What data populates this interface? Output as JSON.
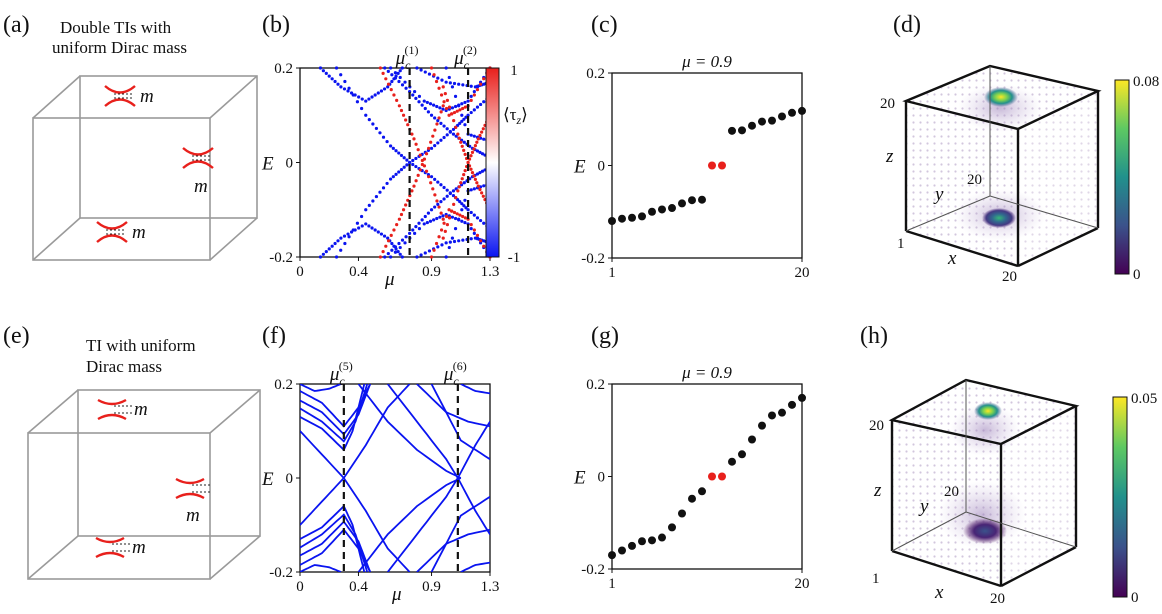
{
  "panel_labels": [
    "(a)",
    "(b)",
    "(c)",
    "(d)",
    "(e)",
    "(f)",
    "(g)",
    "(h)"
  ],
  "schematic_a": {
    "caption_line1": "Double TIs with",
    "caption_line2": "uniform Dirac mass",
    "mass_label": "m"
  },
  "schematic_e": {
    "caption_line1": "TI with uniform",
    "caption_line2": "Dirac mass",
    "mass_label": "m"
  },
  "axis_text": {
    "energy": "E",
    "chem_pot": "μ",
    "x": "x",
    "y": "y",
    "z": "z",
    "tau_open": "⟨τ",
    "tau_sub": "z",
    "tau_close": "⟩",
    "mu_c": "μ",
    "c_sub": "c"
  },
  "colors": {
    "red": "#e8201c",
    "blue": "#0a14f0",
    "black": "#111111"
  },
  "chart_data": [
    {
      "panel": "(b)",
      "type": "scatter",
      "xlabel": "μ",
      "ylabel": "E",
      "xlim": [
        0,
        1.3
      ],
      "ylim": [
        -0.2,
        0.2
      ],
      "xticks": [
        "0",
        "0.4",
        "0.9",
        "1.3"
      ],
      "xtick_vals": [
        0,
        0.4,
        0.9,
        1.3
      ],
      "yticks": [
        "-0.2",
        "0",
        "0.2"
      ],
      "critical_lines": [
        {
          "label": "(1)",
          "x": 0.75
        },
        {
          "label": "(2)",
          "x": 1.15
        }
      ],
      "colorbar": {
        "label": "⟨τz⟩",
        "min": "-1",
        "max": "1",
        "colormap": "blue-white-red"
      },
      "series_blue": [
        {
          "x": [
            0.25,
            0.45,
            0.62,
            0.75,
            0.9,
            1.05,
            1.15,
            1.3
          ],
          "y": [
            0.2,
            0.1,
            0.035,
            0.0,
            -0.03,
            -0.07,
            -0.1,
            -0.14
          ]
        },
        {
          "x": [
            0.25,
            0.45,
            0.62,
            0.75,
            0.9,
            1.05,
            1.15,
            1.3
          ],
          "y": [
            -0.2,
            -0.1,
            -0.035,
            0.0,
            0.03,
            0.07,
            0.1,
            0.14
          ]
        },
        {
          "x": [
            0.14,
            0.28,
            0.45,
            0.6,
            0.7
          ],
          "y": [
            0.2,
            0.16,
            0.13,
            0.16,
            0.2
          ]
        },
        {
          "x": [
            0.14,
            0.28,
            0.45,
            0.6,
            0.7
          ],
          "y": [
            -0.2,
            -0.16,
            -0.13,
            -0.16,
            -0.2
          ]
        },
        {
          "x": [
            0.58,
            0.75,
            0.9,
            1.05,
            1.18,
            1.3
          ],
          "y": [
            0.2,
            0.15,
            0.1,
            0.06,
            0.03,
            0.01
          ]
        },
        {
          "x": [
            0.58,
            0.75,
            0.9,
            1.05,
            1.18,
            1.3
          ],
          "y": [
            -0.2,
            -0.15,
            -0.1,
            -0.06,
            -0.03,
            -0.01
          ]
        },
        {
          "x": [
            0.62,
            0.85,
            1.0,
            1.15,
            1.3
          ],
          "y": [
            0.2,
            0.13,
            0.11,
            0.13,
            0.2
          ]
        },
        {
          "x": [
            0.62,
            0.85,
            1.0,
            1.15,
            1.3
          ],
          "y": [
            -0.2,
            -0.13,
            -0.11,
            -0.13,
            -0.2
          ]
        },
        {
          "x": [
            0.8,
            1.0,
            1.2,
            1.3
          ],
          "y": [
            0.2,
            0.17,
            0.16,
            0.17
          ]
        },
        {
          "x": [
            0.8,
            1.0,
            1.2,
            1.3
          ],
          "y": [
            -0.2,
            -0.17,
            -0.16,
            -0.17
          ]
        },
        {
          "x": [
            1.0,
            1.15,
            1.3
          ],
          "y": [
            0.2,
            0.06,
            0.045
          ]
        },
        {
          "x": [
            1.0,
            1.15,
            1.3
          ],
          "y": [
            -0.2,
            -0.06,
            -0.045
          ]
        }
      ],
      "series_red": [
        {
          "x": [
            0.55,
            0.68,
            0.78,
            0.88,
            0.98
          ],
          "y": [
            0.2,
            0.12,
            0.05,
            -0.03,
            -0.12
          ]
        },
        {
          "x": [
            0.55,
            0.68,
            0.78,
            0.88,
            0.98
          ],
          "y": [
            -0.2,
            -0.12,
            -0.05,
            0.03,
            0.12
          ]
        },
        {
          "x": [
            0.98,
            1.08,
            1.15,
            1.22,
            1.3
          ],
          "y": [
            0.16,
            0.06,
            0.0,
            -0.05,
            -0.1
          ]
        },
        {
          "x": [
            0.98,
            1.08,
            1.15,
            1.22,
            1.3
          ],
          "y": [
            -0.16,
            -0.06,
            0.0,
            0.05,
            0.1
          ]
        },
        {
          "x": [
            0.9,
            1.02,
            1.15,
            1.3
          ],
          "y": [
            0.2,
            0.1,
            0.12,
            0.2
          ]
        },
        {
          "x": [
            0.9,
            1.02,
            1.15,
            1.3
          ],
          "y": [
            -0.2,
            -0.1,
            -0.12,
            -0.2
          ]
        }
      ]
    },
    {
      "panel": "(c)",
      "type": "scatter",
      "title": "μ = 0.9",
      "ylabel": "E",
      "xlim": [
        1,
        20
      ],
      "ylim": [
        -0.2,
        0.2
      ],
      "xticks": [
        "1",
        "20"
      ],
      "yticks": [
        "-0.2",
        "0",
        "0.2"
      ],
      "x": [
        1,
        2,
        3,
        4,
        5,
        6,
        7,
        8,
        9,
        10,
        13,
        14,
        15,
        16,
        17,
        18,
        19,
        20
      ],
      "y": [
        -0.12,
        -0.115,
        -0.113,
        -0.11,
        -0.1,
        -0.095,
        -0.092,
        -0.082,
        -0.075,
        -0.074,
        0.075,
        0.076,
        0.086,
        0.095,
        0.097,
        0.106,
        0.114,
        0.118
      ],
      "zero_modes": {
        "x": [
          11,
          12
        ],
        "y": [
          0,
          0
        ]
      }
    },
    {
      "panel": "(d)",
      "type": "heatmap",
      "colorbar": {
        "min": "0",
        "max": "0.08",
        "colormap": "viridis"
      },
      "axis_ticks": {
        "x_start": "1",
        "x_end": "20",
        "y_end": "20",
        "z_end": "20"
      }
    },
    {
      "panel": "(f)",
      "type": "line",
      "xlabel": "μ",
      "ylabel": "E",
      "xlim": [
        0,
        1.3
      ],
      "ylim": [
        -0.2,
        0.2
      ],
      "xticks": [
        "0",
        "0.4",
        "0.9",
        "1.3"
      ],
      "xtick_vals": [
        0,
        0.4,
        0.9,
        1.3
      ],
      "yticks": [
        "-0.2",
        "0",
        "0.2"
      ],
      "critical_lines": [
        {
          "label": "(5)",
          "x": 0.3
        },
        {
          "label": "(6)",
          "x": 1.08
        }
      ],
      "series": [
        {
          "x": [
            0,
            0.15,
            0.3,
            0.45,
            0.6,
            0.75
          ],
          "y": [
            0.1,
            0.05,
            0.0,
            -0.07,
            -0.15,
            -0.2
          ]
        },
        {
          "x": [
            0,
            0.15,
            0.3,
            0.45,
            0.6,
            0.75
          ],
          "y": [
            -0.1,
            -0.05,
            0.0,
            0.07,
            0.15,
            0.2
          ]
        },
        {
          "x": [
            0,
            0.15,
            0.3,
            0.4,
            0.48
          ],
          "y": [
            0.185,
            0.16,
            0.11,
            0.15,
            0.2
          ]
        },
        {
          "x": [
            0,
            0.15,
            0.3,
            0.4,
            0.48
          ],
          "y": [
            0.165,
            0.14,
            0.093,
            0.135,
            0.2
          ]
        },
        {
          "x": [
            0,
            0.15,
            0.3,
            0.38,
            0.46
          ],
          "y": [
            0.148,
            0.12,
            0.078,
            0.12,
            0.2
          ]
        },
        {
          "x": [
            0,
            0.15,
            0.3,
            0.36,
            0.44
          ],
          "y": [
            0.13,
            0.105,
            0.06,
            0.1,
            0.2
          ]
        },
        {
          "x": [
            0,
            0.15,
            0.3,
            0.4,
            0.48
          ],
          "y": [
            -0.185,
            -0.16,
            -0.11,
            -0.15,
            -0.2
          ]
        },
        {
          "x": [
            0,
            0.15,
            0.3,
            0.4,
            0.48
          ],
          "y": [
            -0.165,
            -0.14,
            -0.093,
            -0.135,
            -0.2
          ]
        },
        {
          "x": [
            0,
            0.15,
            0.3,
            0.38,
            0.46
          ],
          "y": [
            -0.148,
            -0.12,
            -0.078,
            -0.12,
            -0.2
          ]
        },
        {
          "x": [
            0,
            0.15,
            0.3,
            0.36,
            0.44
          ],
          "y": [
            -0.13,
            -0.105,
            -0.06,
            -0.1,
            -0.2
          ]
        },
        {
          "x": [
            0,
            0.1,
            0.2,
            0.28
          ],
          "y": [
            0.2,
            0.185,
            0.19,
            0.2
          ]
        },
        {
          "x": [
            0,
            0.1,
            0.2,
            0.28
          ],
          "y": [
            -0.2,
            -0.185,
            -0.19,
            -0.2
          ]
        },
        {
          "x": [
            0.4,
            0.6,
            0.8,
            1.0,
            1.1
          ],
          "y": [
            0.2,
            0.12,
            0.06,
            0.015,
            0.0
          ]
        },
        {
          "x": [
            0.4,
            0.6,
            0.8,
            1.0,
            1.1
          ],
          "y": [
            -0.2,
            -0.12,
            -0.06,
            -0.015,
            0.0
          ]
        },
        {
          "x": [
            0.6,
            0.8,
            1.0,
            1.08,
            1.2,
            1.3
          ],
          "y": [
            -0.2,
            -0.12,
            -0.04,
            0.0,
            0.07,
            0.12
          ]
        },
        {
          "x": [
            0.6,
            0.8,
            1.0,
            1.08,
            1.2,
            1.3
          ],
          "y": [
            0.2,
            0.12,
            0.04,
            0.0,
            -0.07,
            -0.12
          ]
        },
        {
          "x": [
            0.9,
            1.1,
            1.3
          ],
          "y": [
            -0.2,
            -0.08,
            -0.04
          ]
        },
        {
          "x": [
            0.9,
            1.1,
            1.3
          ],
          "y": [
            0.2,
            0.08,
            0.04
          ]
        },
        {
          "x": [
            0.8,
            1.0,
            1.15,
            1.3
          ],
          "y": [
            0.2,
            0.14,
            0.12,
            0.11
          ]
        },
        {
          "x": [
            0.8,
            1.0,
            1.15,
            1.3
          ],
          "y": [
            -0.2,
            -0.14,
            -0.12,
            -0.11
          ]
        },
        {
          "x": [
            1.1,
            1.2,
            1.3
          ],
          "y": [
            0.2,
            0.185,
            0.18
          ]
        },
        {
          "x": [
            1.1,
            1.2,
            1.3
          ],
          "y": [
            -0.2,
            -0.185,
            -0.18
          ]
        }
      ]
    },
    {
      "panel": "(g)",
      "type": "scatter",
      "title": "μ = 0.9",
      "ylabel": "E",
      "xlim": [
        1,
        20
      ],
      "ylim": [
        -0.2,
        0.2
      ],
      "xticks": [
        "1",
        "20"
      ],
      "yticks": [
        "-0.2",
        "0",
        "0.2"
      ],
      "x": [
        1,
        2,
        3,
        4,
        5,
        6,
        7,
        8,
        9,
        10,
        13,
        14,
        15,
        16,
        17,
        18,
        19,
        20
      ],
      "y": [
        -0.17,
        -0.16,
        -0.15,
        -0.14,
        -0.138,
        -0.132,
        -0.11,
        -0.08,
        -0.048,
        -0.032,
        0.032,
        0.048,
        0.08,
        0.11,
        0.132,
        0.138,
        0.155,
        0.17
      ],
      "zero_modes": {
        "x": [
          11,
          12
        ],
        "y": [
          0,
          0
        ]
      }
    },
    {
      "panel": "(h)",
      "type": "heatmap",
      "colorbar": {
        "min": "0",
        "max": "0.05",
        "colormap": "viridis"
      },
      "axis_ticks": {
        "x_start": "1",
        "x_end": "20",
        "y_end": "20",
        "z_end": "20"
      }
    }
  ]
}
